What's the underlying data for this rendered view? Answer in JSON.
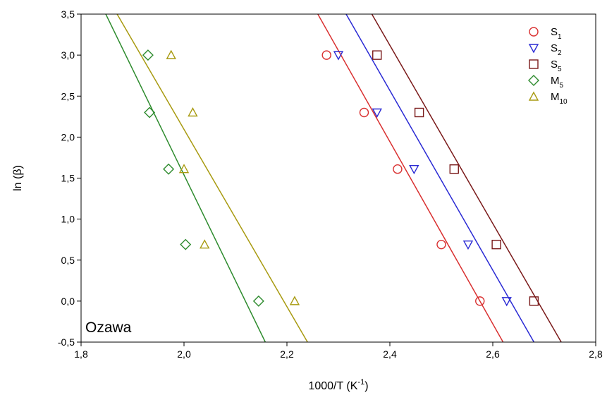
{
  "chart_data": {
    "type": "scatter",
    "annotation": "Ozawa",
    "xlabel": {
      "main": "1000/T (K",
      "sup": "-1",
      "close": ")"
    },
    "ylabel": "ln (β)",
    "xlim": [
      1.8,
      2.8
    ],
    "ylim": [
      -0.5,
      3.5
    ],
    "xticks": [
      1.8,
      2.0,
      2.2,
      2.4,
      2.6,
      2.8
    ],
    "yticks": [
      -0.5,
      0.0,
      0.5,
      1.0,
      1.5,
      2.0,
      2.5,
      3.0,
      3.5
    ],
    "xtick_labels": [
      "1,8",
      "2,0",
      "2,2",
      "2,4",
      "2,6",
      "2,8"
    ],
    "ytick_labels": [
      "-0,5",
      "0,0",
      "0,5",
      "1,0",
      "1,5",
      "2,0",
      "2,5",
      "3,0",
      "3,5"
    ],
    "grid": false,
    "legend_position": "top-right",
    "series": [
      {
        "name": "S1",
        "label_main": "S",
        "label_sub": "1",
        "marker": "circle",
        "color": "#d93030",
        "x": [
          2.575,
          2.5,
          2.415,
          2.35,
          2.277
        ],
        "y": [
          0.0,
          0.69,
          1.61,
          2.3,
          3.0
        ],
        "fit": [
          [
            2.26,
            3.5
          ],
          [
            2.62,
            -0.5
          ]
        ]
      },
      {
        "name": "S2",
        "label_main": "S",
        "label_sub": "2",
        "marker": "triangle-down",
        "color": "#2a2ad4",
        "x": [
          2.627,
          2.552,
          2.447,
          2.375,
          2.3
        ],
        "y": [
          0.0,
          0.69,
          1.61,
          2.3,
          3.0
        ],
        "fit": [
          [
            2.315,
            3.5
          ],
          [
            2.68,
            -0.5
          ]
        ]
      },
      {
        "name": "S5",
        "label_main": "S",
        "label_sub": "5",
        "marker": "square",
        "color": "#7a1a1a",
        "x": [
          2.68,
          2.607,
          2.525,
          2.457,
          2.375
        ],
        "y": [
          0.0,
          0.69,
          1.61,
          2.3,
          3.0
        ],
        "fit": [
          [
            2.365,
            3.5
          ],
          [
            2.733,
            -0.5
          ]
        ]
      },
      {
        "name": "M5",
        "label_main": "M",
        "label_sub": "5",
        "marker": "diamond",
        "color": "#2e8b2e",
        "x": [
          2.145,
          2.003,
          1.97,
          1.933,
          1.93
        ],
        "y": [
          0.0,
          0.69,
          1.61,
          2.3,
          3.0
        ],
        "fit": [
          [
            1.848,
            3.5
          ],
          [
            2.158,
            -0.5
          ]
        ]
      },
      {
        "name": "M10",
        "label_main": "M",
        "label_sub": "10",
        "marker": "triangle-up",
        "color": "#a89a10",
        "x": [
          2.215,
          2.04,
          2.0,
          2.017,
          1.975
        ],
        "y": [
          0.0,
          0.69,
          1.61,
          2.3,
          3.0
        ],
        "fit": [
          [
            1.87,
            3.5
          ],
          [
            2.24,
            -0.5
          ]
        ]
      }
    ]
  }
}
